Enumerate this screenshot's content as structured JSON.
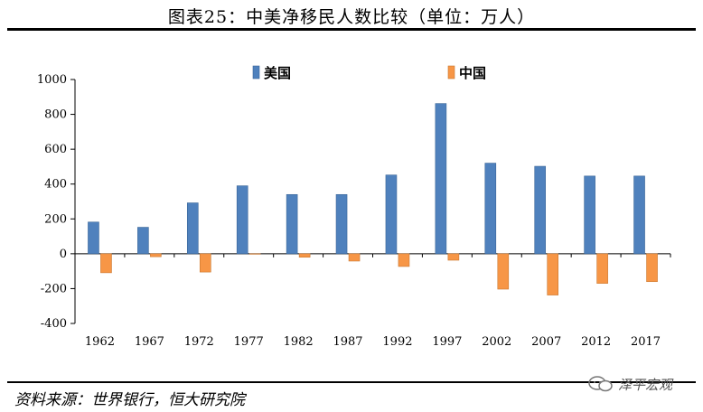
{
  "header": {
    "title": "图表25：中美净移民人数比较（单位：万人）"
  },
  "footer": {
    "source": "资料来源：世界银行，恒大研究院",
    "watermark": "泽平宏观"
  },
  "colors": {
    "usa": "#4f81bd",
    "china": "#f79646"
  },
  "chart_data": {
    "type": "bar",
    "title": "中美净移民人数比较（单位：万人）",
    "categories": [
      "1962",
      "1967",
      "1972",
      "1977",
      "1982",
      "1987",
      "1992",
      "1997",
      "2002",
      "2007",
      "2012",
      "2017"
    ],
    "series": [
      {
        "name": "美国",
        "values": [
          182,
          152,
          292,
          390,
          340,
          340,
          452,
          862,
          520,
          502,
          446,
          446
        ]
      },
      {
        "name": "中国",
        "values": [
          -109,
          -17,
          -105,
          -2,
          -20,
          -42,
          -73,
          -37,
          -203,
          -237,
          -170,
          -160
        ]
      }
    ],
    "ylim": [
      -400,
      1000
    ],
    "yticks": [
      -400,
      -200,
      0,
      200,
      400,
      600,
      800,
      1000
    ],
    "xlabel": "",
    "ylabel": "",
    "legend": "top",
    "grid": false
  }
}
